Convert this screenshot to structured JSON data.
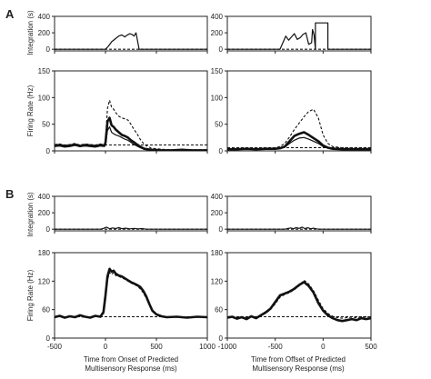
{
  "figure": {
    "panel_labels": [
      "A",
      "B"
    ],
    "integration_ylabel": "Integration (s)",
    "firing_ylabel": "Firing Rate (Hz)",
    "xlabel_onset": "Time from Onset of Predicted Multisensory Response (ms)",
    "xlabel_offset": "Time from Offset of Predicted Multisensory Response (ms)"
  },
  "chart_data": [
    {
      "id": "A-onset-integration",
      "type": "line",
      "row": "A",
      "col": "onset",
      "kind": "integration",
      "ylim": [
        -20,
        400
      ],
      "yticks": [
        0,
        200,
        400
      ],
      "xlim": [
        -500,
        1000
      ],
      "series": [
        {
          "style": "thin",
          "x": [
            -500,
            0,
            30,
            60,
            100,
            130,
            160,
            190,
            210,
            240,
            260,
            280,
            300,
            330,
            1000
          ],
          "y": [
            0,
            0,
            40,
            90,
            130,
            160,
            175,
            150,
            170,
            190,
            180,
            160,
            200,
            0,
            0
          ]
        },
        {
          "style": "dashed",
          "x": [
            -500,
            1000
          ],
          "y": [
            0,
            0
          ]
        }
      ]
    },
    {
      "id": "A-offset-integration",
      "type": "line",
      "row": "A",
      "col": "offset",
      "kind": "integration",
      "ylim": [
        -20,
        400
      ],
      "yticks": [
        0,
        200,
        400
      ],
      "xlim": [
        -1000,
        500
      ],
      "series": [
        {
          "style": "thin",
          "x": [
            -1000,
            -450,
            -420,
            -390,
            -360,
            -330,
            -300,
            -270,
            -240,
            -210,
            -180,
            -150,
            -120,
            -110,
            -95,
            -80,
            -80,
            50,
            50,
            500
          ],
          "y": [
            0,
            0,
            80,
            160,
            110,
            150,
            190,
            120,
            140,
            180,
            200,
            60,
            80,
            240,
            180,
            0,
            320,
            320,
            0,
            0
          ]
        },
        {
          "style": "dashed",
          "x": [
            -1000,
            500
          ],
          "y": [
            0,
            0
          ]
        }
      ]
    },
    {
      "id": "A-onset-firing",
      "type": "line",
      "row": "A",
      "col": "onset",
      "kind": "firing",
      "ylim": [
        0,
        150
      ],
      "yticks": [
        0,
        50,
        100,
        150
      ],
      "xlim": [
        -500,
        1000
      ],
      "series": [
        {
          "style": "thick",
          "x": [
            -500,
            -450,
            -400,
            -350,
            -300,
            -250,
            -200,
            -150,
            -100,
            -50,
            -10,
            0,
            20,
            40,
            60,
            80,
            100,
            130,
            160,
            190,
            220,
            250,
            280,
            310,
            340,
            380,
            450,
            550,
            650,
            750,
            850,
            1000
          ],
          "y": [
            10,
            11,
            9,
            10,
            12,
            9,
            11,
            10,
            9,
            11,
            10,
            15,
            55,
            62,
            48,
            45,
            40,
            35,
            30,
            28,
            25,
            20,
            16,
            12,
            8,
            4,
            2,
            1,
            1,
            2,
            1,
            1
          ]
        },
        {
          "style": "thin",
          "x": [
            -500,
            -450,
            -400,
            -350,
            -300,
            -250,
            -200,
            -150,
            -100,
            -50,
            -10,
            0,
            20,
            40,
            60,
            80,
            100,
            130,
            160,
            190,
            220,
            250,
            280,
            310,
            340,
            380,
            450,
            550,
            650,
            750,
            850,
            1000
          ],
          "y": [
            8,
            9,
            7,
            8,
            10,
            8,
            9,
            8,
            7,
            9,
            8,
            12,
            38,
            45,
            35,
            32,
            30,
            28,
            25,
            22,
            20,
            16,
            12,
            9,
            6,
            3,
            1,
            1,
            1,
            1,
            1,
            1
          ]
        },
        {
          "style": "dashed",
          "x": [
            -500,
            -450,
            -400,
            -350,
            -300,
            -250,
            -200,
            -150,
            -100,
            -50,
            -10,
            0,
            20,
            40,
            60,
            80,
            100,
            130,
            160,
            190,
            220,
            250,
            280,
            310,
            340,
            380,
            450,
            550,
            650,
            750,
            850,
            1000
          ],
          "y": [
            12,
            13,
            11,
            12,
            14,
            11,
            13,
            12,
            11,
            13,
            12,
            20,
            80,
            95,
            82,
            78,
            72,
            65,
            62,
            60,
            58,
            50,
            40,
            32,
            22,
            12,
            5,
            3,
            2,
            2,
            2,
            2
          ]
        },
        {
          "style": "dashed",
          "x": [
            -500,
            1000
          ],
          "y": [
            11,
            11
          ]
        }
      ]
    },
    {
      "id": "A-offset-firing",
      "type": "line",
      "row": "A",
      "col": "offset",
      "kind": "firing",
      "ylim": [
        0,
        150
      ],
      "yticks": [
        0,
        50,
        100,
        150
      ],
      "xlim": [
        -1000,
        500
      ],
      "series": [
        {
          "style": "thick",
          "x": [
            -1000,
            -900,
            -800,
            -700,
            -600,
            -500,
            -450,
            -400,
            -350,
            -300,
            -250,
            -200,
            -150,
            -100,
            -50,
            0,
            50,
            100,
            200,
            300,
            400,
            500
          ],
          "y": [
            3,
            3,
            4,
            3,
            4,
            4,
            5,
            8,
            18,
            28,
            32,
            35,
            30,
            24,
            18,
            10,
            6,
            4,
            3,
            3,
            3,
            3
          ]
        },
        {
          "style": "thin",
          "x": [
            -1000,
            -900,
            -800,
            -700,
            -600,
            -500,
            -450,
            -400,
            -350,
            -300,
            -250,
            -200,
            -150,
            -100,
            -50,
            0,
            50,
            100,
            200,
            300,
            400,
            500
          ],
          "y": [
            3,
            3,
            3,
            3,
            3,
            4,
            5,
            7,
            14,
            20,
            24,
            25,
            22,
            18,
            14,
            8,
            5,
            4,
            3,
            3,
            3,
            3
          ]
        },
        {
          "style": "dashed",
          "x": [
            -1000,
            -900,
            -800,
            -700,
            -600,
            -500,
            -450,
            -400,
            -350,
            -300,
            -250,
            -200,
            -150,
            -100,
            -50,
            0,
            50,
            100,
            200,
            300,
            400,
            500
          ],
          "y": [
            4,
            5,
            4,
            5,
            5,
            6,
            8,
            14,
            26,
            40,
            52,
            64,
            74,
            78,
            62,
            30,
            14,
            8,
            6,
            5,
            5,
            5
          ]
        },
        {
          "style": "dashed",
          "x": [
            -1000,
            500
          ],
          "y": [
            6,
            6
          ]
        }
      ]
    },
    {
      "id": "B-onset-integration",
      "type": "line",
      "row": "B",
      "col": "onset",
      "kind": "integration",
      "ylim": [
        -20,
        400
      ],
      "yticks": [
        0,
        200,
        400
      ],
      "xlim": [
        -500,
        1000
      ],
      "series": [
        {
          "style": "thin",
          "x": [
            -500,
            -50,
            -20,
            10,
            40,
            70,
            100,
            130,
            160,
            200,
            240,
            280,
            320,
            360,
            400,
            1000
          ],
          "y": [
            0,
            0,
            10,
            25,
            5,
            15,
            8,
            20,
            6,
            12,
            4,
            10,
            3,
            8,
            0,
            0
          ]
        },
        {
          "style": "dashed",
          "x": [
            -500,
            1000
          ],
          "y": [
            0,
            0
          ]
        }
      ]
    },
    {
      "id": "B-offset-integration",
      "type": "line",
      "row": "B",
      "col": "offset",
      "kind": "integration",
      "ylim": [
        -20,
        400
      ],
      "yticks": [
        0,
        200,
        400
      ],
      "xlim": [
        -1000,
        500
      ],
      "series": [
        {
          "style": "thin",
          "x": [
            -1000,
            -400,
            -370,
            -340,
            -310,
            -280,
            -250,
            -220,
            -190,
            -160,
            -130,
            -100,
            -70,
            -40,
            500
          ],
          "y": [
            0,
            0,
            8,
            15,
            5,
            20,
            10,
            25,
            8,
            18,
            5,
            12,
            4,
            0,
            0
          ]
        },
        {
          "style": "dashed",
          "x": [
            -1000,
            500
          ],
          "y": [
            0,
            0
          ]
        }
      ]
    },
    {
      "id": "B-onset-firing",
      "type": "line",
      "row": "B",
      "col": "onset",
      "kind": "firing",
      "ylim": [
        0,
        180
      ],
      "yticks": [
        0,
        60,
        120,
        180
      ],
      "xlim": [
        -500,
        1000
      ],
      "series": [
        {
          "style": "thick",
          "x": [
            -500,
            -450,
            -400,
            -350,
            -300,
            -250,
            -200,
            -150,
            -100,
            -50,
            -20,
            0,
            20,
            40,
            60,
            80,
            100,
            130,
            160,
            190,
            220,
            250,
            280,
            310,
            340,
            370,
            400,
            430,
            460,
            500,
            550,
            600,
            700,
            800,
            900,
            1000
          ],
          "y": [
            44,
            47,
            43,
            46,
            44,
            48,
            45,
            43,
            47,
            45,
            55,
            90,
            130,
            146,
            140,
            142,
            136,
            132,
            130,
            126,
            122,
            118,
            115,
            112,
            108,
            100,
            88,
            72,
            58,
            50,
            46,
            44,
            45,
            43,
            45,
            44
          ]
        },
        {
          "style": "dashed",
          "x": [
            -500,
            -450,
            -400,
            -350,
            -300,
            -250,
            -200,
            -150,
            -100,
            -50,
            -20,
            0,
            20,
            40,
            60,
            80,
            100,
            130,
            160,
            190,
            220,
            250,
            280,
            310,
            340,
            370,
            400,
            430,
            460,
            500,
            550,
            600,
            700,
            800,
            900,
            1000
          ],
          "y": [
            45,
            45,
            44,
            45,
            46,
            45,
            44,
            45,
            46,
            45,
            50,
            80,
            122,
            138,
            134,
            138,
            132,
            130,
            127,
            124,
            120,
            116,
            113,
            110,
            104,
            96,
            84,
            70,
            56,
            50,
            46,
            45,
            45,
            44,
            45,
            45
          ]
        },
        {
          "style": "dashed",
          "x": [
            -500,
            1000
          ],
          "y": [
            45,
            45
          ]
        }
      ]
    },
    {
      "id": "B-offset-firing",
      "type": "line",
      "row": "B",
      "col": "offset",
      "kind": "firing",
      "ylim": [
        0,
        180
      ],
      "yticks": [
        0,
        60,
        120,
        180
      ],
      "xlim": [
        -1000,
        500
      ],
      "series": [
        {
          "style": "thick",
          "x": [
            -1000,
            -950,
            -900,
            -850,
            -800,
            -750,
            -700,
            -650,
            -600,
            -550,
            -500,
            -450,
            -400,
            -350,
            -300,
            -250,
            -200,
            -150,
            -100,
            -50,
            0,
            50,
            100,
            150,
            200,
            250,
            300,
            350,
            400,
            450,
            500
          ],
          "y": [
            43,
            45,
            41,
            44,
            40,
            46,
            42,
            48,
            54,
            62,
            76,
            90,
            94,
            98,
            104,
            112,
            118,
            110,
            96,
            74,
            58,
            48,
            42,
            38,
            36,
            38,
            40,
            38,
            42,
            40,
            42
          ]
        },
        {
          "style": "dashed",
          "x": [
            -1000,
            -950,
            -900,
            -850,
            -800,
            -750,
            -700,
            -650,
            -600,
            -550,
            -500,
            -450,
            -400,
            -350,
            -300,
            -250,
            -200,
            -150,
            -100,
            -50,
            0,
            50,
            100,
            150,
            200,
            250,
            300,
            350,
            400,
            450,
            500
          ],
          "y": [
            45,
            46,
            44,
            45,
            44,
            46,
            45,
            48,
            52,
            60,
            72,
            86,
            92,
            96,
            102,
            110,
            122,
            114,
            100,
            80,
            62,
            52,
            46,
            43,
            42,
            43,
            44,
            43,
            45,
            44,
            45
          ]
        },
        {
          "style": "dashed",
          "x": [
            -1000,
            500
          ],
          "y": [
            45,
            45
          ]
        }
      ]
    }
  ]
}
